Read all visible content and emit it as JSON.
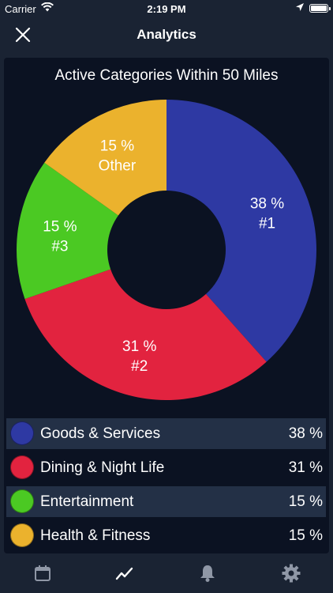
{
  "status": {
    "carrier": "Carrier",
    "time": "2:19 PM"
  },
  "nav": {
    "title": "Analytics"
  },
  "chart_data": {
    "type": "pie",
    "title": "Active Categories Within 50 Miles",
    "series": [
      {
        "label": "38 %",
        "sub": "#1",
        "value": 38,
        "color": "#2e39a3"
      },
      {
        "label": "31 %",
        "sub": "#2",
        "value": 31,
        "color": "#e2233f"
      },
      {
        "label": "15 %",
        "sub": "#3",
        "value": 15,
        "color": "#4bc923"
      },
      {
        "label": "15 %",
        "sub": "Other",
        "value": 15,
        "color": "#ebb22d"
      }
    ]
  },
  "legend": [
    {
      "name": "Goods & Services",
      "percent": "38 %",
      "color": "#2e39a3"
    },
    {
      "name": "Dining & Night Life",
      "percent": "31 %",
      "color": "#e2233f"
    },
    {
      "name": "Entertainment",
      "percent": "15 %",
      "color": "#4bc923"
    },
    {
      "name": "Health & Fitness",
      "percent": "15 %",
      "color": "#ebb22d"
    }
  ],
  "tabs": [
    {
      "name": "calendar-icon",
      "active": false
    },
    {
      "name": "trend-chart-icon",
      "active": true
    },
    {
      "name": "bell-icon",
      "active": false
    },
    {
      "name": "gear-icon",
      "active": false
    }
  ]
}
